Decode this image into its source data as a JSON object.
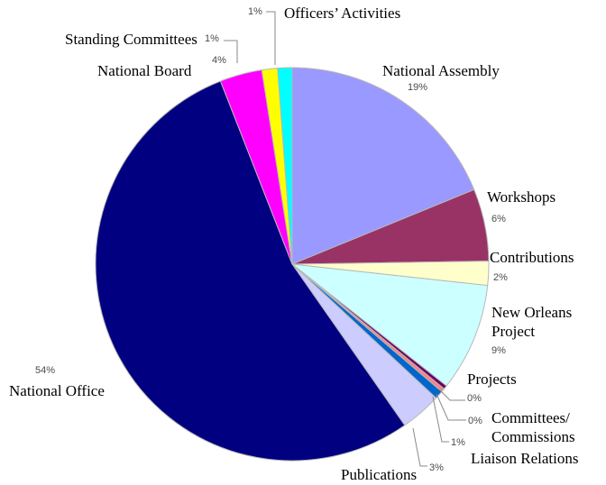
{
  "chart_data": {
    "type": "pie",
    "title": "",
    "slices": [
      {
        "name": "National Assembly",
        "value": 19,
        "label": "19%",
        "color": "#9999ff"
      },
      {
        "name": "Workshops",
        "value": 6,
        "label": "6%",
        "color": "#993366"
      },
      {
        "name": "Contributions",
        "value": 2,
        "label": "2%",
        "color": "#ffffcc"
      },
      {
        "name": "New Orleans Project",
        "value": 9,
        "label": "9%",
        "color": "#ccffff"
      },
      {
        "name": "Projects",
        "value": 0.3,
        "label": "0%",
        "color": "#660066"
      },
      {
        "name": "Committees/ Commissions",
        "value": 0.3,
        "label": "0%",
        "color": "#ff8080"
      },
      {
        "name": "Liaison Relations",
        "value": 0.7,
        "label": "1%",
        "color": "#0066cc"
      },
      {
        "name": "Publications",
        "value": 3.4,
        "label": "3%",
        "color": "#ccccff"
      },
      {
        "name": "National Office",
        "value": 54.3,
        "label": "54%",
        "color": "#000080"
      },
      {
        "name": "National Board",
        "value": 3.5,
        "label": "4%",
        "color": "#ff00ff"
      },
      {
        "name": "Standing Committees",
        "value": 1.3,
        "label": "1%",
        "color": "#ffff00"
      },
      {
        "name": "Officers’ Activities",
        "value": 1.2,
        "label": "1%",
        "color": "#00ffff"
      }
    ]
  }
}
